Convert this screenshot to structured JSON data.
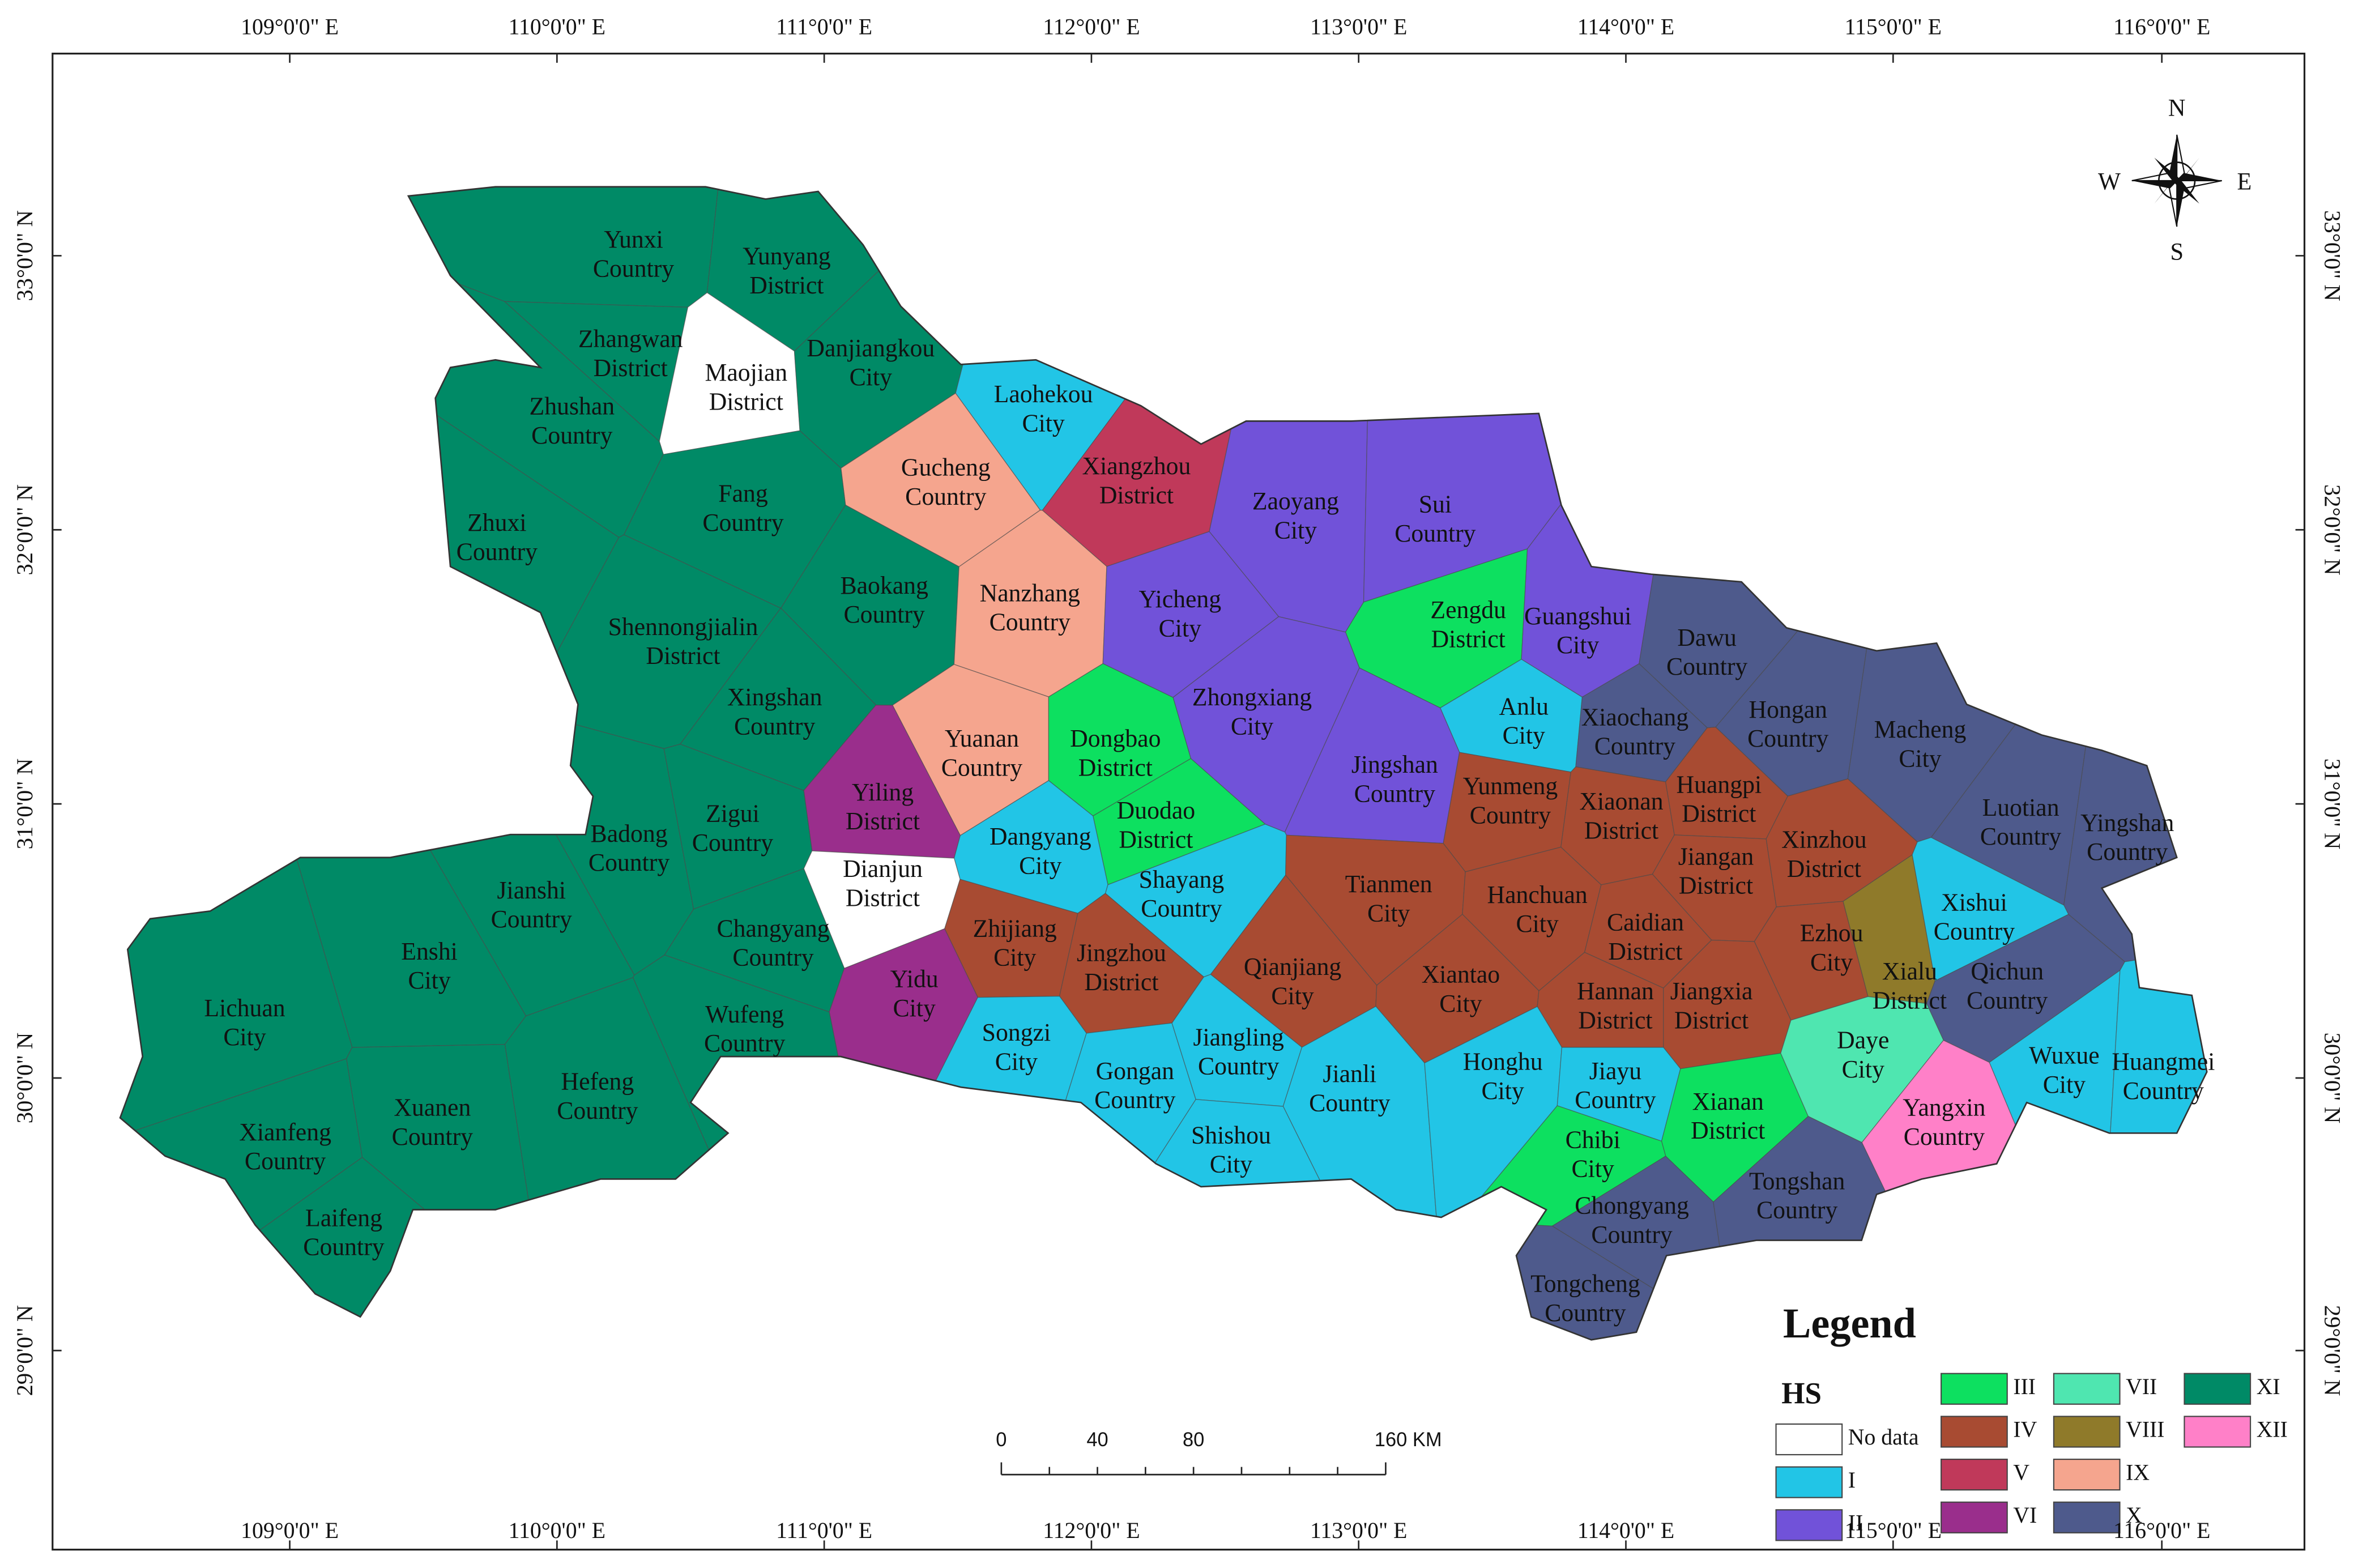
{
  "map": {
    "longitude_labels": [
      "109°0'0\" E",
      "110°0'0\" E",
      "111°0'0\" E",
      "112°0'0\" E",
      "113°0'0\" E",
      "114°0'0\" E",
      "115°0'0\" E",
      "116°0'0\" E"
    ],
    "latitude_labels": [
      "33°0'0\" N",
      "32°0'0\" N",
      "31°0'0\" N",
      "30°0'0\" N",
      "29°0'0\" N"
    ],
    "compass": {
      "north": "N",
      "south": "S",
      "east": "E",
      "west": "W"
    },
    "scale_bar": {
      "labels": [
        "0",
        "40",
        "80",
        "160 KM"
      ]
    },
    "legend": {
      "title": "Legend",
      "subtitle": "HS",
      "classes": [
        {
          "label": "No data",
          "color": "#ffffff"
        },
        {
          "label": "I",
          "color": "#22c5e6"
        },
        {
          "label": "II",
          "color": "#7152d9"
        },
        {
          "label": "III",
          "color": "#0de060"
        },
        {
          "label": "IV",
          "color": "#a84b32"
        },
        {
          "label": "V",
          "color": "#c0395a"
        },
        {
          "label": "VI",
          "color": "#9a2e8c"
        },
        {
          "label": "VII",
          "color": "#4fe6b0"
        },
        {
          "label": "VIII",
          "color": "#8f7a2a"
        },
        {
          "label": "IX",
          "color": "#f5a58e"
        },
        {
          "label": "X",
          "color": "#4e5a8c"
        },
        {
          "label": "XI",
          "color": "#008a66"
        },
        {
          "label": "XII",
          "color": "#ff80c8"
        }
      ]
    },
    "regions": [
      {
        "name": "Yunxi Country",
        "hs": "XI"
      },
      {
        "name": "Yunyang District",
        "hs": "XI"
      },
      {
        "name": "Zhangwan District",
        "hs": "XI"
      },
      {
        "name": "Maojian District",
        "hs": "No data"
      },
      {
        "name": "Danjiangkou City",
        "hs": "XI"
      },
      {
        "name": "Zhushan Country",
        "hs": "XI"
      },
      {
        "name": "Laohekou City",
        "hs": "I"
      },
      {
        "name": "Gucheng Country",
        "hs": "IX"
      },
      {
        "name": "Xiangzhou District",
        "hs": "V"
      },
      {
        "name": "Zaoyang City",
        "hs": "II"
      },
      {
        "name": "Sui Country",
        "hs": "II"
      },
      {
        "name": "Fang Country",
        "hs": "XI"
      },
      {
        "name": "Zhuxi Country",
        "hs": "XI"
      },
      {
        "name": "Baokang Country",
        "hs": "XI"
      },
      {
        "name": "Nanzhang Country",
        "hs": "IX"
      },
      {
        "name": "Yicheng City",
        "hs": "II"
      },
      {
        "name": "Zengdu District",
        "hs": "III"
      },
      {
        "name": "Guangshui City",
        "hs": "II"
      },
      {
        "name": "Dawu Country",
        "hs": "X"
      },
      {
        "name": "Shennongjialin District",
        "hs": "XI"
      },
      {
        "name": "Xingshan Country",
        "hs": "XI"
      },
      {
        "name": "Zhongxiang City",
        "hs": "II"
      },
      {
        "name": "Hongan Country",
        "hs": "X"
      },
      {
        "name": "Macheng City",
        "hs": "X"
      },
      {
        "name": "Anlu City",
        "hs": "I"
      },
      {
        "name": "Xiaochang Country",
        "hs": "X"
      },
      {
        "name": "Yuanan Country",
        "hs": "IX"
      },
      {
        "name": "Dongbao District",
        "hs": "III"
      },
      {
        "name": "Jingshan Country",
        "hs": "II"
      },
      {
        "name": "Yiling District",
        "hs": "VI"
      },
      {
        "name": "Duodao District",
        "hs": "III"
      },
      {
        "name": "Yunmeng Country",
        "hs": "IV"
      },
      {
        "name": "Xiaonan District",
        "hs": "IV"
      },
      {
        "name": "Huangpi District",
        "hs": "IV"
      },
      {
        "name": "Jiangan District",
        "hs": "IV"
      },
      {
        "name": "Xinzhou District",
        "hs": "IV"
      },
      {
        "name": "Luotian Country",
        "hs": "X"
      },
      {
        "name": "Yingshan Country",
        "hs": "X"
      },
      {
        "name": "Badong Country",
        "hs": "XI"
      },
      {
        "name": "Zigui Country",
        "hs": "XI"
      },
      {
        "name": "Jianshi Country",
        "hs": "XI"
      },
      {
        "name": "Dangyang City",
        "hs": "I"
      },
      {
        "name": "Dianjun District",
        "hs": "No data"
      },
      {
        "name": "Shayang Country",
        "hs": "I"
      },
      {
        "name": "Tianmen City",
        "hs": "IV"
      },
      {
        "name": "Hanchuan City",
        "hs": "IV"
      },
      {
        "name": "Caidian District",
        "hs": "IV"
      },
      {
        "name": "Xishui Country",
        "hs": "I"
      },
      {
        "name": "Enshi City",
        "hs": "XI"
      },
      {
        "name": "Changyang Country",
        "hs": "XI"
      },
      {
        "name": "Zhijiang City",
        "hs": "IV"
      },
      {
        "name": "Jingzhou District",
        "hs": "IV"
      },
      {
        "name": "Qianjiang City",
        "hs": "IV"
      },
      {
        "name": "Xiantao City",
        "hs": "IV"
      },
      {
        "name": "Ezhou City",
        "hs": "IV"
      },
      {
        "name": "Xialu District",
        "hs": "VIII"
      },
      {
        "name": "Qichun Country",
        "hs": "X"
      },
      {
        "name": "Yidu City",
        "hs": "VI"
      },
      {
        "name": "Hannan District",
        "hs": "IV"
      },
      {
        "name": "Jiangxia District",
        "hs": "IV"
      },
      {
        "name": "Lichuan City",
        "hs": "XI"
      },
      {
        "name": "Wufeng Country",
        "hs": "XI"
      },
      {
        "name": "Songzi City",
        "hs": "I"
      },
      {
        "name": "Gongan Country",
        "hs": "I"
      },
      {
        "name": "Jiangling Country",
        "hs": "I"
      },
      {
        "name": "Jianli Country",
        "hs": "I"
      },
      {
        "name": "Honghu City",
        "hs": "I"
      },
      {
        "name": "Jiayu Country",
        "hs": "I"
      },
      {
        "name": "Xianan District",
        "hs": "III"
      },
      {
        "name": "Daye City",
        "hs": "VII"
      },
      {
        "name": "Yangxin Country",
        "hs": "XII"
      },
      {
        "name": "Wuxue City",
        "hs": "I"
      },
      {
        "name": "Huangmei Country",
        "hs": "I"
      },
      {
        "name": "Hefeng Country",
        "hs": "XI"
      },
      {
        "name": "Xuanen Country",
        "hs": "XI"
      },
      {
        "name": "Xianfeng Country",
        "hs": "XI"
      },
      {
        "name": "Shishou City",
        "hs": "I"
      },
      {
        "name": "Chibi City",
        "hs": "III"
      },
      {
        "name": "Laifeng Country",
        "hs": "XI"
      },
      {
        "name": "Chongyang Country",
        "hs": "X"
      },
      {
        "name": "Tongshan Country",
        "hs": "X"
      },
      {
        "name": "Tongcheng Country",
        "hs": "X"
      }
    ]
  }
}
